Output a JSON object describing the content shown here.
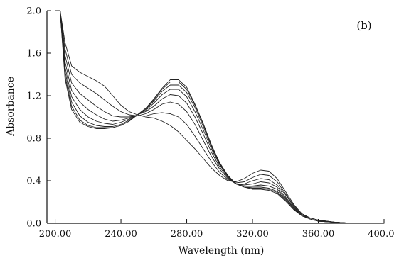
{
  "chart_data": {
    "type": "line",
    "panel_label": "(b)",
    "xlabel": "Wavelength  (nm)",
    "ylabel": "Absorbance",
    "xlim": [
      195,
      400
    ],
    "ylim": [
      0,
      2
    ],
    "x_ticks": [
      {
        "value": 200,
        "label": "200.00"
      },
      {
        "value": 240,
        "label": "240.00"
      },
      {
        "value": 280,
        "label": "280.00"
      },
      {
        "value": 320,
        "label": "320.00"
      },
      {
        "value": 360,
        "label": "360.00"
      },
      {
        "value": 400,
        "label": "400.00"
      }
    ],
    "y_ticks": [
      {
        "value": 0.0,
        "label": "0.0"
      },
      {
        "value": 0.4,
        "label": "0.4"
      },
      {
        "value": 0.8,
        "label": "0.8"
      },
      {
        "value": 1.2,
        "label": "1.2"
      },
      {
        "value": 1.6,
        "label": "1.6"
      },
      {
        "value": 2.0,
        "label": "2.0"
      }
    ],
    "grid": false,
    "legend": "none",
    "line_color": "#222222",
    "x": [
      200,
      203,
      206,
      210,
      215,
      220,
      225,
      230,
      235,
      240,
      245,
      250,
      255,
      260,
      265,
      270,
      275,
      280,
      285,
      290,
      295,
      300,
      305,
      310,
      315,
      320,
      325,
      330,
      335,
      340,
      345,
      350,
      355,
      360,
      370,
      380,
      390,
      400
    ],
    "series": [
      {
        "values": [
          2.0,
          2.0,
          1.7,
          1.48,
          1.42,
          1.38,
          1.34,
          1.29,
          1.2,
          1.11,
          1.05,
          1.02,
          1.0,
          0.99,
          0.96,
          0.92,
          0.86,
          0.78,
          0.7,
          0.61,
          0.52,
          0.45,
          0.4,
          0.39,
          0.42,
          0.47,
          0.5,
          0.49,
          0.42,
          0.3,
          0.18,
          0.09,
          0.05,
          0.03,
          0.01,
          0.0,
          0.0,
          0.0
        ]
      },
      {
        "values": [
          2.0,
          2.0,
          1.64,
          1.4,
          1.32,
          1.27,
          1.22,
          1.16,
          1.1,
          1.05,
          1.02,
          1.01,
          1.01,
          1.03,
          1.04,
          1.03,
          1.0,
          0.93,
          0.82,
          0.7,
          0.58,
          0.48,
          0.41,
          0.38,
          0.39,
          0.43,
          0.46,
          0.45,
          0.39,
          0.28,
          0.17,
          0.09,
          0.05,
          0.03,
          0.01,
          0.0,
          0.0,
          0.0
        ]
      },
      {
        "values": [
          2.0,
          2.0,
          1.58,
          1.32,
          1.22,
          1.16,
          1.1,
          1.05,
          1.01,
          1.0,
          1.0,
          1.01,
          1.03,
          1.07,
          1.12,
          1.14,
          1.12,
          1.05,
          0.93,
          0.78,
          0.63,
          0.51,
          0.42,
          0.37,
          0.37,
          0.4,
          0.42,
          0.41,
          0.36,
          0.27,
          0.16,
          0.08,
          0.05,
          0.03,
          0.01,
          0.0,
          0.0,
          0.0
        ]
      },
      {
        "values": [
          2.0,
          2.0,
          1.52,
          1.25,
          1.14,
          1.07,
          1.02,
          0.98,
          0.96,
          0.97,
          0.99,
          1.02,
          1.05,
          1.1,
          1.17,
          1.21,
          1.2,
          1.13,
          1.0,
          0.84,
          0.67,
          0.53,
          0.43,
          0.37,
          0.36,
          0.37,
          0.39,
          0.38,
          0.34,
          0.25,
          0.15,
          0.08,
          0.04,
          0.02,
          0.01,
          0.0,
          0.0,
          0.0
        ]
      },
      {
        "values": [
          2.0,
          2.0,
          1.47,
          1.19,
          1.07,
          1.0,
          0.96,
          0.94,
          0.93,
          0.95,
          0.98,
          1.02,
          1.06,
          1.13,
          1.21,
          1.26,
          1.26,
          1.19,
          1.05,
          0.88,
          0.7,
          0.55,
          0.44,
          0.37,
          0.35,
          0.35,
          0.36,
          0.35,
          0.32,
          0.24,
          0.14,
          0.08,
          0.04,
          0.02,
          0.01,
          0.0,
          0.0,
          0.0
        ]
      },
      {
        "values": [
          2.0,
          2.0,
          1.43,
          1.14,
          1.01,
          0.95,
          0.92,
          0.91,
          0.91,
          0.93,
          0.97,
          1.02,
          1.07,
          1.15,
          1.24,
          1.3,
          1.3,
          1.23,
          1.09,
          0.91,
          0.72,
          0.56,
          0.44,
          0.37,
          0.34,
          0.34,
          0.34,
          0.33,
          0.3,
          0.23,
          0.14,
          0.07,
          0.04,
          0.02,
          0.01,
          0.0,
          0.0,
          0.0
        ]
      },
      {
        "values": [
          2.0,
          2.0,
          1.39,
          1.1,
          0.97,
          0.92,
          0.9,
          0.9,
          0.9,
          0.92,
          0.96,
          1.02,
          1.08,
          1.16,
          1.26,
          1.33,
          1.33,
          1.26,
          1.11,
          0.93,
          0.73,
          0.57,
          0.45,
          0.37,
          0.34,
          0.33,
          0.33,
          0.32,
          0.29,
          0.22,
          0.13,
          0.07,
          0.04,
          0.02,
          0.01,
          0.0,
          0.0,
          0.0
        ]
      },
      {
        "values": [
          2.0,
          2.0,
          1.36,
          1.07,
          0.95,
          0.91,
          0.89,
          0.89,
          0.9,
          0.92,
          0.96,
          1.02,
          1.08,
          1.17,
          1.27,
          1.35,
          1.35,
          1.28,
          1.12,
          0.94,
          0.74,
          0.57,
          0.45,
          0.37,
          0.34,
          0.32,
          0.32,
          0.31,
          0.28,
          0.21,
          0.13,
          0.07,
          0.04,
          0.02,
          0.01,
          0.0,
          0.0,
          0.0
        ]
      }
    ]
  }
}
